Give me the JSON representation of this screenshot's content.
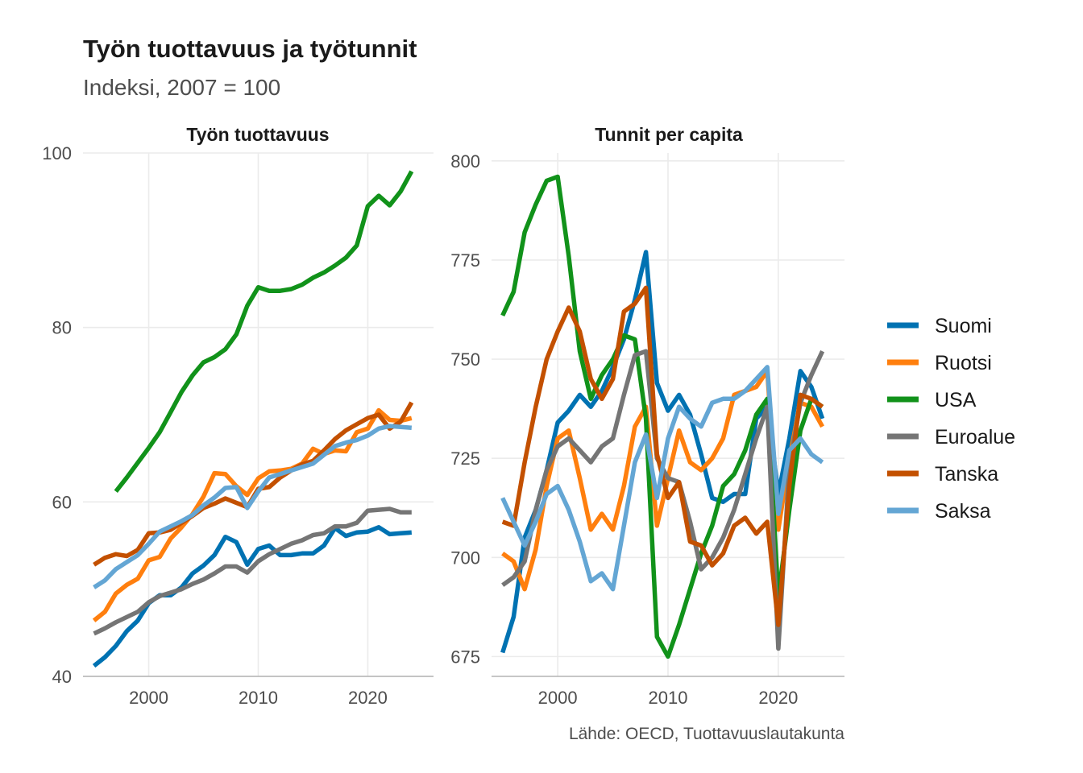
{
  "title": "Työn tuottavuus ja työtunnit",
  "subtitle": "Indeksi, 2007 = 100",
  "caption": "Lähde: OECD, Tuottavuuslautakunta",
  "legend": [
    {
      "name": "Suomi",
      "color": "#0072b2"
    },
    {
      "name": "Ruotsi",
      "color": "#ff7f0e"
    },
    {
      "name": "USA",
      "color": "#11921a"
    },
    {
      "name": "Euroalue",
      "color": "#757575"
    },
    {
      "name": "Tanska",
      "color": "#c35000"
    },
    {
      "name": "Saksa",
      "color": "#64a6d4"
    }
  ],
  "chart_data": [
    {
      "type": "line",
      "title": "Työn tuottavuus",
      "xlabel": "",
      "ylabel": "",
      "xlim": [
        1994,
        2026
      ],
      "ylim": [
        40,
        100
      ],
      "x_ticks": [
        2000,
        2010,
        2020
      ],
      "y_ticks": [
        40,
        60,
        80,
        100
      ],
      "grid": true,
      "series": [
        {
          "name": "Suomi",
          "color": "#0072b2",
          "x": [
            1995,
            1996,
            1997,
            1998,
            1999,
            2000,
            2001,
            2002,
            2003,
            2004,
            2005,
            2006,
            2007,
            2008,
            2009,
            2010,
            2011,
            2012,
            2013,
            2014,
            2015,
            2016,
            2017,
            2018,
            2019,
            2020,
            2021,
            2022,
            2023,
            2024
          ],
          "y": [
            41.2,
            42.2,
            43.5,
            45.2,
            46.4,
            48.4,
            49.3,
            49.3,
            50.2,
            51.8,
            52.7,
            53.9,
            56.0,
            55.4,
            52.8,
            54.6,
            55.0,
            53.9,
            53.9,
            54.1,
            54.1,
            55.0,
            57.0,
            56.1,
            56.5,
            56.6,
            57.1,
            56.3,
            56.4,
            56.5
          ]
        },
        {
          "name": "Ruotsi",
          "color": "#ff7f0e",
          "x": [
            1995,
            1996,
            1997,
            1998,
            1999,
            2000,
            2001,
            2002,
            2003,
            2004,
            2005,
            2006,
            2007,
            2008,
            2009,
            2010,
            2011,
            2012,
            2013,
            2014,
            2015,
            2016,
            2017,
            2018,
            2019,
            2020,
            2021,
            2022,
            2023,
            2024
          ],
          "y": [
            46.4,
            47.4,
            49.5,
            50.5,
            51.2,
            53.3,
            53.7,
            55.8,
            57.1,
            58.6,
            60.6,
            63.3,
            63.2,
            61.8,
            60.8,
            62.7,
            63.5,
            63.6,
            63.8,
            64.4,
            66.1,
            65.5,
            65.9,
            65.8,
            68.0,
            68.4,
            70.5,
            69.4,
            69.3,
            69.6
          ]
        },
        {
          "name": "USA",
          "color": "#11921a",
          "x": [
            1997,
            1998,
            1999,
            2000,
            2001,
            2002,
            2003,
            2004,
            2005,
            2006,
            2007,
            2008,
            2009,
            2010,
            2011,
            2012,
            2013,
            2014,
            2015,
            2016,
            2017,
            2018,
            2019,
            2020,
            2021,
            2022,
            2023,
            2024
          ],
          "y": [
            61.2,
            62.8,
            64.5,
            66.2,
            68.0,
            70.3,
            72.6,
            74.5,
            76.0,
            76.6,
            77.5,
            79.2,
            82.5,
            84.6,
            84.2,
            84.2,
            84.4,
            84.9,
            85.7,
            86.3,
            87.1,
            88.0,
            89.4,
            93.9,
            95.1,
            94.0,
            95.6,
            97.9
          ]
        },
        {
          "name": "Euroalue",
          "color": "#757575",
          "x": [
            1995,
            1996,
            1997,
            1998,
            1999,
            2000,
            2001,
            2002,
            2003,
            2004,
            2005,
            2006,
            2007,
            2008,
            2009,
            2010,
            2011,
            2012,
            2013,
            2014,
            2015,
            2016,
            2017,
            2018,
            2019,
            2020,
            2021,
            2022,
            2023,
            2024
          ],
          "y": [
            44.9,
            45.5,
            46.2,
            46.8,
            47.4,
            48.5,
            49.2,
            49.6,
            50.0,
            50.6,
            51.1,
            51.8,
            52.6,
            52.6,
            51.9,
            53.2,
            54.0,
            54.6,
            55.2,
            55.6,
            56.2,
            56.4,
            57.2,
            57.2,
            57.6,
            59.0,
            59.1,
            59.2,
            58.8,
            58.8
          ]
        },
        {
          "name": "Tanska",
          "color": "#c35000",
          "x": [
            1995,
            1996,
            1997,
            1998,
            1999,
            2000,
            2001,
            2002,
            2003,
            2004,
            2005,
            2006,
            2007,
            2008,
            2009,
            2010,
            2011,
            2012,
            2013,
            2014,
            2015,
            2016,
            2017,
            2018,
            2019,
            2020,
            2021,
            2022,
            2023,
            2024
          ],
          "y": [
            52.8,
            53.6,
            54.0,
            53.8,
            54.5,
            56.4,
            56.5,
            56.8,
            57.6,
            58.4,
            59.3,
            59.8,
            60.4,
            59.9,
            59.4,
            61.5,
            61.7,
            62.8,
            63.6,
            64.3,
            64.7,
            65.9,
            67.2,
            68.2,
            68.9,
            69.6,
            70.0,
            68.4,
            69.2,
            71.4
          ]
        },
        {
          "name": "Saksa",
          "color": "#64a6d4",
          "x": [
            1995,
            1996,
            1997,
            1998,
            1999,
            2000,
            2001,
            2002,
            2003,
            2004,
            2005,
            2006,
            2007,
            2008,
            2009,
            2010,
            2011,
            2012,
            2013,
            2014,
            2015,
            2016,
            2017,
            2018,
            2019,
            2020,
            2021,
            2022,
            2023,
            2024
          ],
          "y": [
            50.2,
            51.0,
            52.3,
            53.1,
            53.9,
            55.2,
            56.6,
            57.2,
            57.8,
            58.5,
            59.6,
            60.5,
            61.6,
            61.7,
            59.3,
            61.2,
            62.8,
            63.2,
            63.6,
            64.0,
            64.4,
            65.4,
            66.4,
            66.8,
            67.1,
            67.6,
            68.4,
            68.7,
            68.6,
            68.5
          ]
        }
      ]
    },
    {
      "type": "line",
      "title": "Tunnit per capita",
      "xlabel": "",
      "ylabel": "",
      "xlim": [
        1994,
        2026
      ],
      "ylim": [
        670,
        802
      ],
      "x_ticks": [
        2000,
        2010,
        2020
      ],
      "y_ticks": [
        675,
        700,
        725,
        750,
        775,
        800
      ],
      "grid": true,
      "series": [
        {
          "name": "Suomi",
          "color": "#0072b2",
          "x": [
            1995,
            1996,
            1997,
            1998,
            1999,
            2000,
            2001,
            2002,
            2003,
            2004,
            2005,
            2006,
            2007,
            2008,
            2009,
            2010,
            2011,
            2012,
            2013,
            2014,
            2015,
            2016,
            2017,
            2018,
            2019,
            2020,
            2021,
            2022,
            2023,
            2024
          ],
          "y": [
            676,
            685,
            705,
            712,
            722,
            734,
            737,
            741,
            738,
            742,
            748,
            755,
            765,
            777,
            744,
            737,
            741,
            736,
            726,
            715,
            714,
            716,
            716,
            735,
            738,
            716,
            730,
            747,
            743,
            735
          ]
        },
        {
          "name": "Ruotsi",
          "color": "#ff7f0e",
          "x": [
            1995,
            1996,
            1997,
            1998,
            1999,
            2000,
            2001,
            2002,
            2003,
            2004,
            2005,
            2006,
            2007,
            2008,
            2009,
            2010,
            2011,
            2012,
            2013,
            2014,
            2015,
            2016,
            2017,
            2018,
            2019,
            2020,
            2021,
            2022,
            2023,
            2024
          ],
          "y": [
            701,
            699,
            692,
            702,
            718,
            730,
            732,
            720,
            707,
            711,
            707,
            718,
            733,
            738,
            708,
            720,
            732,
            724,
            722,
            725,
            730,
            741,
            742,
            743,
            747,
            707,
            725,
            739,
            738,
            733
          ]
        },
        {
          "name": "USA",
          "color": "#11921a",
          "x": [
            1995,
            1996,
            1997,
            1998,
            1999,
            2000,
            2001,
            2002,
            2003,
            2004,
            2005,
            2006,
            2007,
            2008,
            2009,
            2010,
            2011,
            2012,
            2013,
            2014,
            2015,
            2016,
            2017,
            2018,
            2019,
            2020,
            2021,
            2022,
            2023,
            2024
          ],
          "y": [
            761,
            767,
            782,
            789,
            795,
            796,
            776,
            752,
            740,
            746,
            750,
            756,
            755,
            735,
            680,
            675,
            683,
            692,
            701,
            708,
            718,
            721,
            727,
            736,
            740,
            690,
            712,
            732,
            740,
            738
          ]
        },
        {
          "name": "Euroalue",
          "color": "#757575",
          "x": [
            1995,
            1996,
            1997,
            1998,
            1999,
            2000,
            2001,
            2002,
            2003,
            2004,
            2005,
            2006,
            2007,
            2008,
            2009,
            2010,
            2011,
            2012,
            2013,
            2014,
            2015,
            2016,
            2017,
            2018,
            2019,
            2020,
            2021,
            2022,
            2023,
            2024
          ],
          "y": [
            693,
            695,
            699,
            712,
            722,
            728,
            730,
            727,
            724,
            728,
            730,
            741,
            751,
            752,
            725,
            720,
            719,
            709,
            697,
            700,
            705,
            712,
            721,
            730,
            738,
            677,
            723,
            739,
            746,
            752
          ]
        },
        {
          "name": "Tanska",
          "color": "#c35000",
          "x": [
            1995,
            1996,
            1997,
            1998,
            1999,
            2000,
            2001,
            2002,
            2003,
            2004,
            2005,
            2006,
            2007,
            2008,
            2009,
            2010,
            2011,
            2012,
            2013,
            2014,
            2015,
            2016,
            2017,
            2018,
            2019,
            2020,
            2021,
            2022,
            2023,
            2024
          ],
          "y": [
            709,
            708,
            724,
            738,
            750,
            757,
            763,
            757,
            745,
            740,
            745,
            762,
            764,
            768,
            726,
            715,
            719,
            704,
            703,
            698,
            701,
            708,
            710,
            706,
            709,
            683,
            718,
            741,
            740,
            738
          ]
        },
        {
          "name": "Saksa",
          "color": "#64a6d4",
          "x": [
            1995,
            1996,
            1997,
            1998,
            1999,
            2000,
            2001,
            2002,
            2003,
            2004,
            2005,
            2006,
            2007,
            2008,
            2009,
            2010,
            2011,
            2012,
            2013,
            2014,
            2015,
            2016,
            2017,
            2018,
            2019,
            2020,
            2021,
            2022,
            2023,
            2024
          ],
          "y": [
            715,
            709,
            703,
            709,
            716,
            718,
            712,
            704,
            694,
            696,
            692,
            708,
            724,
            731,
            715,
            730,
            738,
            735,
            733,
            739,
            740,
            740,
            742,
            745,
            748,
            711,
            727,
            730,
            726,
            724
          ]
        }
      ]
    }
  ]
}
